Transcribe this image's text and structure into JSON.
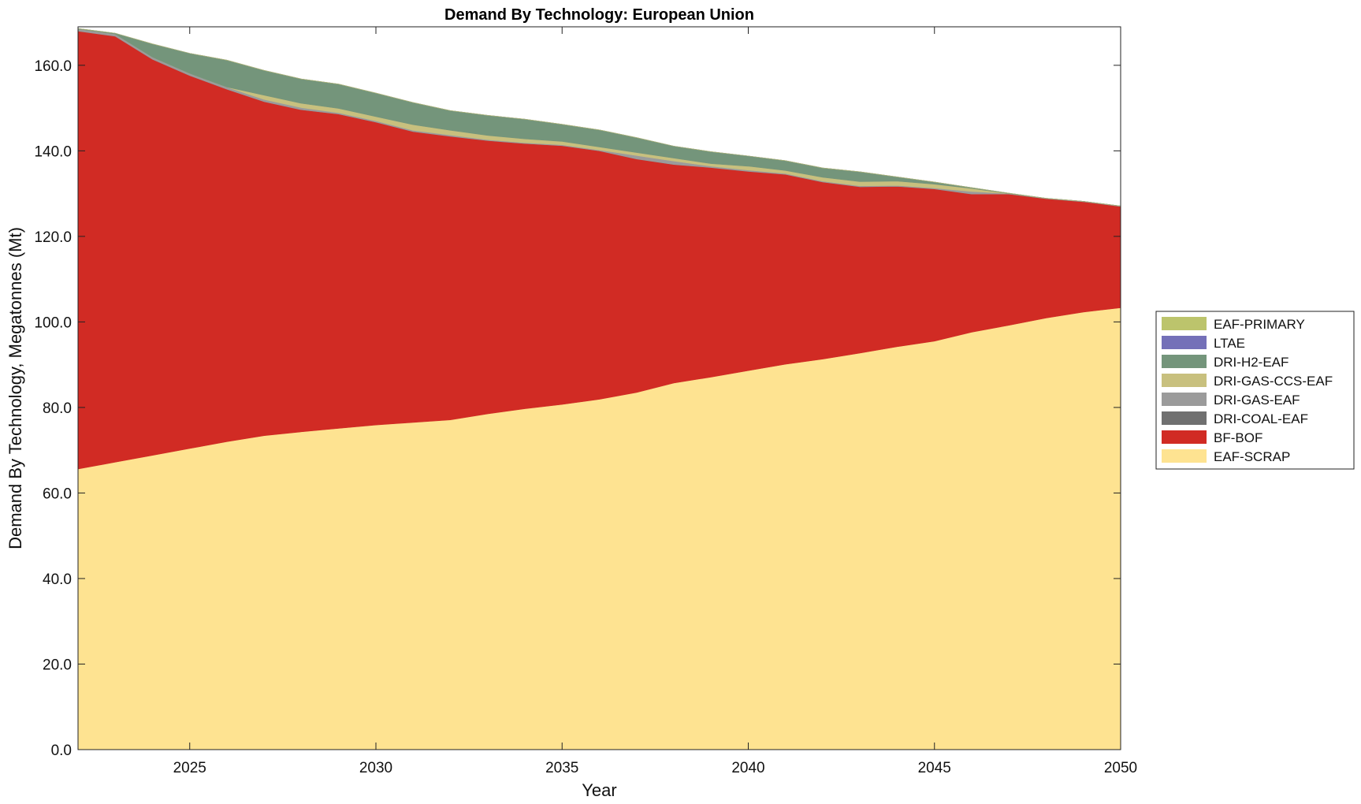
{
  "chart_data": {
    "type": "area",
    "title": "Demand By Technology: European Union",
    "xlabel": "Year",
    "ylabel": "Demand By Technology, Megatonnes (Mt)",
    "xlim": [
      2022,
      2050
    ],
    "ylim": [
      0,
      169
    ],
    "x_ticks": [
      "2025",
      "2030",
      "2035",
      "2040",
      "2045",
      "2050"
    ],
    "y_ticks": [
      "0.0",
      "20.0",
      "40.0",
      "60.0",
      "80.0",
      "100.0",
      "120.0",
      "140.0",
      "160.0"
    ],
    "stacked": true,
    "grid": false,
    "legend_position": "right",
    "x": [
      2022,
      2023,
      2024,
      2025,
      2026,
      2027,
      2028,
      2029,
      2030,
      2031,
      2032,
      2033,
      2034,
      2035,
      2036,
      2037,
      2038,
      2039,
      2040,
      2041,
      2042,
      2043,
      2044,
      2045,
      2046,
      2047,
      2048,
      2049,
      2050
    ],
    "series": [
      {
        "name": "EAF-SCRAP",
        "color": "#fee391",
        "values": [
          65.6,
          67.2,
          68.8,
          70.4,
          72.0,
          73.4,
          74.3,
          75.1,
          75.9,
          76.5,
          77.1,
          78.5,
          79.7,
          80.7,
          81.9,
          83.5,
          85.7,
          87.1,
          88.6,
          90.1,
          91.3,
          92.7,
          94.2,
          95.5,
          97.6,
          99.2,
          100.9,
          102.3,
          103.3
        ]
      },
      {
        "name": "BF-BOF",
        "color": "#d12b24",
        "values": [
          102.4,
          99.6,
          92.6,
          87.2,
          82.4,
          78.1,
          75.3,
          73.5,
          70.8,
          68.0,
          66.3,
          63.9,
          62.0,
          60.5,
          58.1,
          54.6,
          51.1,
          49.0,
          46.6,
          44.4,
          41.4,
          38.9,
          37.5,
          35.6,
          32.3,
          30.7,
          27.9,
          25.8,
          23.7
        ]
      },
      {
        "name": "DRI-COAL-EAF",
        "color": "#707070",
        "values": [
          0,
          0,
          0,
          0,
          0,
          0,
          0,
          0,
          0,
          0,
          0,
          0,
          0,
          0,
          0,
          0,
          0,
          0,
          0,
          0,
          0,
          0,
          0,
          0,
          0,
          0,
          0,
          0,
          0
        ]
      },
      {
        "name": "DRI-GAS-EAF",
        "color": "#9b9b9b",
        "values": [
          0.5,
          0.5,
          0.5,
          0.5,
          0.5,
          0.5,
          0.5,
          0.3,
          0.3,
          0.3,
          0.3,
          0.2,
          0.2,
          0.2,
          0.2,
          0.8,
          0.8,
          0.3,
          0.3,
          0.2,
          0.2,
          0.2,
          0.2,
          0.2,
          0.6,
          0.1,
          0.1,
          0.1,
          0.1
        ]
      },
      {
        "name": "DRI-GAS-CCS-EAF",
        "color": "#c8c07e",
        "values": [
          0,
          0,
          0,
          0,
          0,
          1.0,
          1.0,
          1.0,
          1.0,
          1.3,
          1.1,
          1.0,
          0.9,
          0.8,
          0.7,
          0.7,
          0.7,
          0.6,
          0.9,
          0.7,
          0.9,
          1.0,
          1.0,
          0.9,
          0.7,
          0,
          0,
          0,
          0
        ]
      },
      {
        "name": "DRI-H2-EAF",
        "color": "#74957b",
        "values": [
          0.1,
          0.2,
          3.1,
          4.7,
          6.3,
          5.8,
          5.7,
          5.7,
          5.5,
          5.2,
          4.6,
          4.7,
          4.6,
          4.0,
          4.0,
          3.5,
          2.8,
          2.8,
          2.4,
          2.3,
          2.2,
          2.3,
          1.0,
          0.5,
          0.2,
          0.1,
          0,
          0,
          0
        ]
      },
      {
        "name": "LTAE",
        "color": "#7470b8",
        "values": [
          0,
          0,
          0,
          0,
          0,
          0,
          0,
          0,
          0,
          0,
          0,
          0,
          0,
          0,
          0,
          0,
          0,
          0,
          0,
          0,
          0,
          0,
          0,
          0,
          0,
          0,
          0,
          0,
          0
        ]
      },
      {
        "name": "EAF-PRIMARY",
        "color": "#bcc46c",
        "values": [
          0,
          0,
          0,
          0,
          0,
          0,
          0,
          0,
          0,
          0,
          0,
          0,
          0,
          0,
          0,
          0,
          0,
          0,
          0,
          0,
          0,
          0,
          0,
          0,
          0,
          0,
          0,
          0,
          0
        ]
      }
    ],
    "legend_order": [
      "EAF-PRIMARY",
      "LTAE",
      "DRI-H2-EAF",
      "DRI-GAS-CCS-EAF",
      "DRI-GAS-EAF",
      "DRI-COAL-EAF",
      "BF-BOF",
      "EAF-SCRAP"
    ]
  }
}
